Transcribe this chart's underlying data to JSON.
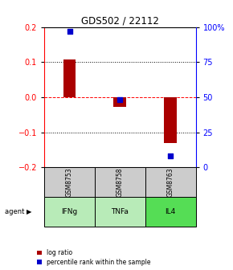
{
  "title": "GDS502 / 22112",
  "samples": [
    "GSM8753",
    "GSM8758",
    "GSM8763"
  ],
  "agents": [
    "IFNg",
    "TNFa",
    "IL4"
  ],
  "log_ratios": [
    0.108,
    -0.028,
    -0.13
  ],
  "percentile_ranks": [
    97,
    48,
    8
  ],
  "bar_color": "#aa0000",
  "dot_color": "#0000cc",
  "left_ylim": [
    -0.2,
    0.2
  ],
  "right_ylim": [
    0,
    100
  ],
  "yticks_left": [
    -0.2,
    -0.1,
    0.0,
    0.1,
    0.2
  ],
  "yticks_right": [
    0,
    25,
    50,
    75,
    100
  ],
  "ytick_labels_right": [
    "0",
    "25",
    "50",
    "75",
    "100%"
  ],
  "sample_bg": "#cccccc",
  "agent_colors": [
    "#b8ebb8",
    "#b8ebb8",
    "#55dd55"
  ],
  "legend_items": [
    "log ratio",
    "percentile rank within the sample"
  ],
  "bar_width": 0.25
}
